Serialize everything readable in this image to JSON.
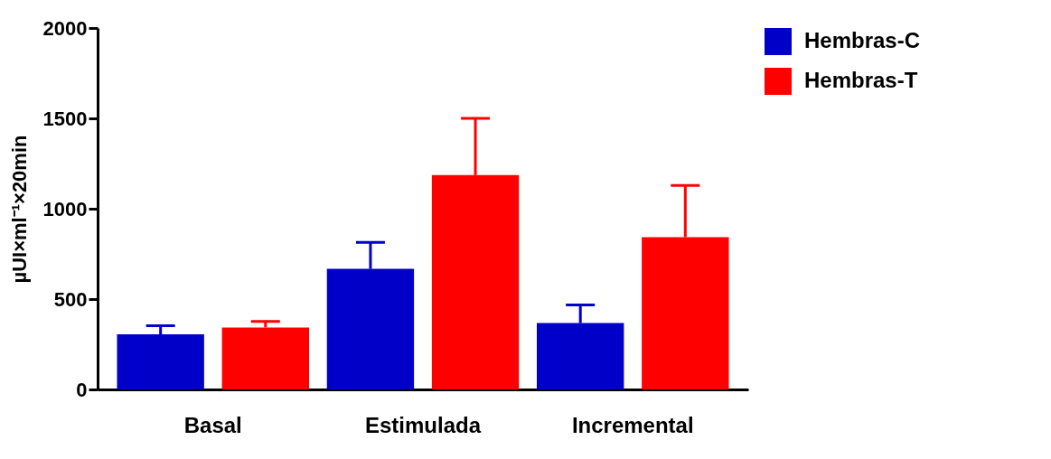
{
  "chart_data": {
    "type": "bar",
    "ylabel": "µUI×ml⁻¹×20min",
    "categories": [
      "Basal",
      "Estimulada",
      "Incremental"
    ],
    "series": [
      {
        "name": "Hembras-C",
        "color": "#0000c8",
        "values": [
          305,
          667,
          367
        ],
        "errors": [
          [
            305,
            352
          ],
          [
            667,
            814
          ],
          [
            367,
            467
          ]
        ]
      },
      {
        "name": "Hembras-T",
        "color": "#ff0000",
        "values": [
          343,
          1186,
          843
        ],
        "errors": [
          [
            343,
            376
          ],
          [
            1186,
            1500
          ],
          [
            843,
            1129
          ]
        ]
      }
    ],
    "ylim": [
      0,
      2000
    ],
    "yticks": [
      0,
      500,
      1000,
      1500,
      2000
    ],
    "grid": false,
    "legend": "top right"
  }
}
